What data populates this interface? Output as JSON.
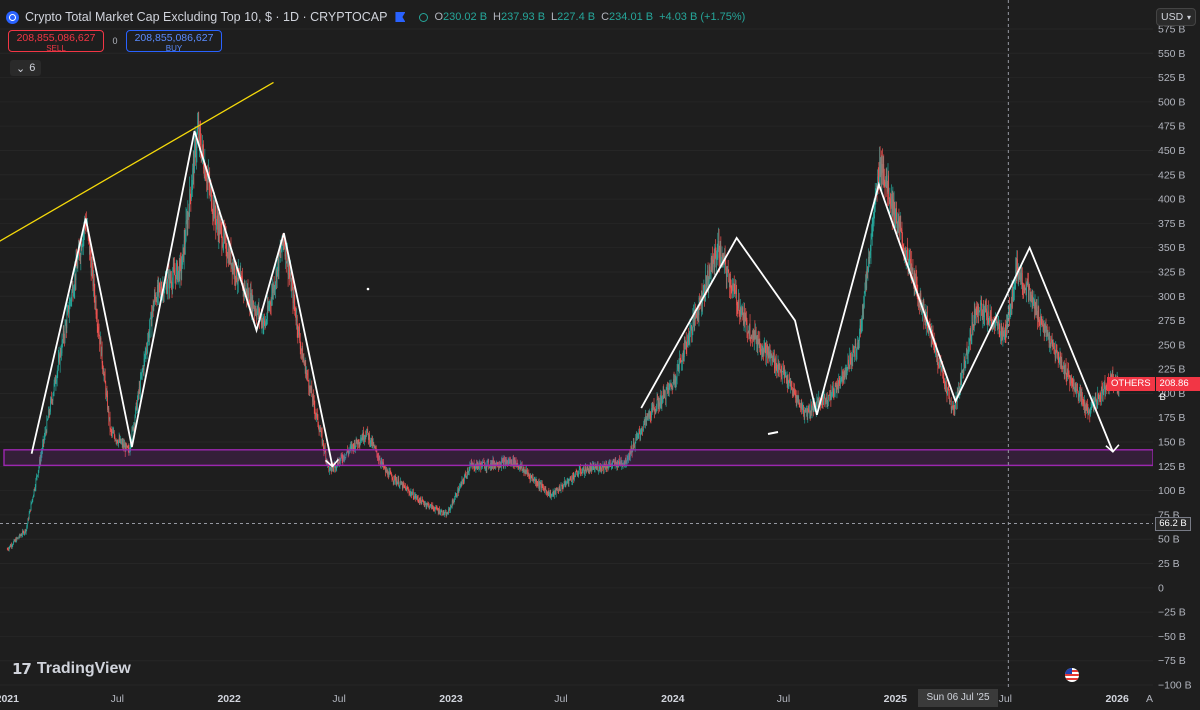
{
  "header": {
    "title": "Crypto Total Market Cap Excluding Top 10, $ · 1D · CRYPTOCAP",
    "ohlc": [
      {
        "key": "O",
        "value": "230.02 B"
      },
      {
        "key": "H",
        "value": "237.93 B"
      },
      {
        "key": "L",
        "value": "227.4 B"
      },
      {
        "key": "C",
        "value": "234.01 B"
      },
      {
        "key": "",
        "value": "+4.03 B (+1.75%)"
      }
    ]
  },
  "trade": {
    "sell_price": "208,855,086,627",
    "sell_label": "SELL",
    "spread": "0",
    "buy_price": "208,855,086,627",
    "buy_label": "BUY"
  },
  "indicators": {
    "count": "6"
  },
  "currency": {
    "selected": "USD"
  },
  "brand": {
    "name": "TradingView"
  },
  "price_tag": {
    "symbol": "OTHERS",
    "value": "208.86 B"
  },
  "crosshair": {
    "price": "66.2 B",
    "date": "Sun 06 Jul '25"
  },
  "colors": {
    "background": "#1e1e1e",
    "up": "#26a69a",
    "down": "#ef5350",
    "trendline": "#f5d90a",
    "support_band": "#9c27b0",
    "drawing": "#ffffff"
  },
  "chart_data": {
    "type": "candlestick",
    "y_unit": "B",
    "ylim": [
      -100,
      575
    ],
    "y_ticks": [
      "575 B",
      "550 B",
      "525 B",
      "500 B",
      "475 B",
      "450 B",
      "425 B",
      "400 B",
      "375 B",
      "350 B",
      "325 B",
      "300 B",
      "275 B",
      "250 B",
      "225 B",
      "200 B",
      "175 B",
      "150 B",
      "125 B",
      "100 B",
      "75 B",
      "50 B",
      "25 B",
      "0",
      "−25 B",
      "−50 B",
      "−75 B",
      "−100 B"
    ],
    "x_ticks": [
      "2021",
      "Jul",
      "2022",
      "Jul",
      "2023",
      "Jul",
      "2024",
      "Jul",
      "2025",
      "Jul",
      "2026",
      "A"
    ],
    "approx_close_path": [
      [
        "2021-01-01",
        40
      ],
      [
        "2021-02-01",
        60
      ],
      [
        "2021-02-25",
        135
      ],
      [
        "2021-04-01",
        250
      ],
      [
        "2021-05-10",
        380
      ],
      [
        "2021-06-20",
        160
      ],
      [
        "2021-07-20",
        140
      ],
      [
        "2021-09-01",
        300
      ],
      [
        "2021-10-15",
        330
      ],
      [
        "2021-11-10",
        470
      ],
      [
        "2021-12-10",
        380
      ],
      [
        "2022-01-15",
        320
      ],
      [
        "2022-03-01",
        270
      ],
      [
        "2022-04-01",
        360
      ],
      [
        "2022-05-01",
        240
      ],
      [
        "2022-06-15",
        120
      ],
      [
        "2022-07-15",
        140
      ],
      [
        "2022-08-15",
        160
      ],
      [
        "2022-09-15",
        120
      ],
      [
        "2022-11-10",
        90
      ],
      [
        "2022-12-25",
        75
      ],
      [
        "2023-02-01",
        125
      ],
      [
        "2023-04-15",
        130
      ],
      [
        "2023-06-15",
        95
      ],
      [
        "2023-08-01",
        120
      ],
      [
        "2023-10-15",
        130
      ],
      [
        "2023-11-20",
        175
      ],
      [
        "2024-01-01",
        210
      ],
      [
        "2024-03-15",
        350
      ],
      [
        "2024-05-01",
        270
      ],
      [
        "2024-07-01",
        220
      ],
      [
        "2024-08-05",
        180
      ],
      [
        "2024-09-20",
        200
      ],
      [
        "2024-11-01",
        250
      ],
      [
        "2024-12-08",
        440
      ],
      [
        "2025-01-15",
        350
      ],
      [
        "2025-03-01",
        260
      ],
      [
        "2025-04-07",
        180
      ],
      [
        "2025-05-15",
        290
      ],
      [
        "2025-07-01",
        260
      ],
      [
        "2025-07-20",
        330
      ],
      [
        "2025-09-15",
        250
      ],
      [
        "2025-11-15",
        180
      ],
      [
        "2025-12-20",
        215
      ],
      [
        "2026-01-05",
        208.86
      ]
    ],
    "annotations": {
      "resistance_trendline": [
        [
          "2020-12-01",
          350
        ],
        [
          "2022-03-15",
          520
        ]
      ],
      "support_band": [
        126,
        142
      ],
      "horizontal_line": 66.2
    }
  }
}
